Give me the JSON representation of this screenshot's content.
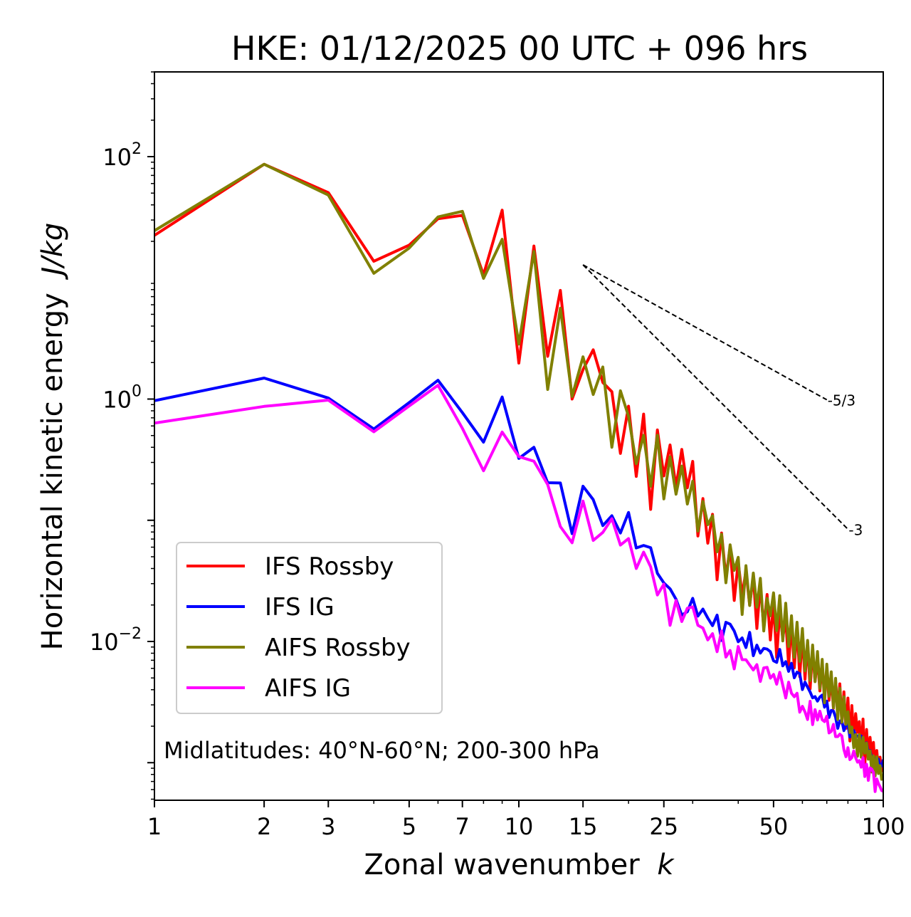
{
  "chart_data": {
    "type": "line",
    "title": "HKE: 01/12/2025 00 UTC + 096 hrs",
    "xlabel": "Zonal wavenumber",
    "xlabel_var": "k",
    "ylabel": "Horizontal kinetic energy",
    "ylabel_units": "J/kg",
    "x_scale": "log",
    "y_scale": "log",
    "xlim": [
      1,
      100
    ],
    "ylim": [
      0.00049,
      500
    ],
    "x_ticks": [
      1,
      2,
      3,
      5,
      7,
      10,
      15,
      25,
      50,
      100
    ],
    "x_tick_labels": [
      "1",
      "2",
      "3",
      "5",
      "7",
      "10",
      "15",
      "25",
      "50",
      "100"
    ],
    "y_ticks": [
      {
        "value": 100,
        "base": "10",
        "exp": "2"
      },
      {
        "value": 1,
        "base": "10",
        "exp": "0"
      },
      {
        "value": 0.01,
        "base": "10",
        "exp": "−2"
      }
    ],
    "annotation": "Midlatitudes: 40°N-60°N; 200-300 hPa",
    "legend_position": "lower-left",
    "reference_slopes": [
      {
        "label": "-5/3",
        "slope": -1.6667,
        "x": [
          15,
          70
        ],
        "y": [
          12.8,
          0.986
        ]
      },
      {
        "label": "-3",
        "slope": -3,
        "x": [
          15,
          80
        ],
        "y": [
          12.8,
          0.0844
        ]
      }
    ],
    "series": [
      {
        "name": "IFS Rossby",
        "color": "#ff0000",
        "x": [
          1,
          2,
          3,
          4,
          5,
          6,
          7,
          8,
          9,
          10,
          11,
          12,
          13,
          14,
          15,
          16,
          17,
          18,
          19,
          20,
          21,
          22,
          23,
          24,
          25,
          26,
          27,
          28,
          29,
          30,
          31,
          32,
          33,
          34,
          35,
          36,
          37,
          38,
          39,
          40,
          41,
          42,
          43,
          44,
          45,
          46,
          47,
          48,
          49,
          50,
          51,
          52,
          53,
          54,
          55,
          56,
          57,
          58,
          59,
          60,
          61,
          62,
          63,
          64,
          65,
          66,
          67,
          68,
          69,
          70,
          71,
          72,
          73,
          74,
          75,
          76,
          77,
          78,
          79,
          80,
          81,
          82,
          83,
          84,
          85,
          86,
          87,
          88,
          89,
          90,
          91,
          92,
          93,
          94,
          95,
          96,
          97,
          98,
          99,
          100
        ],
        "y": [
          22.4,
          86.5,
          50.5,
          13.7,
          18.6,
          30.7,
          32.8,
          10.6,
          36.2,
          1.98,
          18.3,
          2.25,
          7.88,
          1.0,
          1.75,
          2.55,
          1.37,
          1.15,
          0.356,
          0.874,
          0.23,
          0.751,
          0.123,
          0.556,
          0.232,
          0.418,
          0.188,
          0.384,
          0.185,
          0.306,
          0.0742,
          0.151,
          0.0647,
          0.112,
          0.0323,
          0.0785,
          0.0339,
          0.0597,
          0.0218,
          0.0451,
          0.0239,
          0.0382,
          0.0199,
          0.0346,
          0.0128,
          0.0294,
          0.013,
          0.0244,
          0.0103,
          0.0205,
          0.00738,
          0.0178,
          0.0107,
          0.0154,
          0.00637,
          0.0144,
          0.00606,
          0.0131,
          0.00513,
          0.0115,
          0.00488,
          0.00992,
          0.00407,
          0.0086,
          0.00469,
          0.00735,
          0.00391,
          0.00629,
          0.00384,
          0.00587,
          0.00327,
          0.00503,
          0.00281,
          0.0047,
          0.00271,
          0.00447,
          0.00212,
          0.00384,
          0.00192,
          0.00341,
          0.00151,
          0.00296,
          0.00158,
          0.00254,
          0.00178,
          0.00218,
          0.00127,
          0.00229,
          0.000942,
          0.00188,
          0.00107,
          0.00162,
          0.00114,
          0.00147,
          0.000854,
          0.00126,
          0.000877,
          0.00111,
          0.000853,
          0.00104
        ]
      },
      {
        "name": "IFS IG",
        "color": "#0000ff",
        "x": [
          1,
          2,
          3,
          4,
          5,
          6,
          7,
          8,
          9,
          10,
          11,
          12,
          13,
          14,
          15,
          16,
          17,
          18,
          19,
          20,
          21,
          22,
          23,
          24,
          25,
          26,
          27,
          28,
          29,
          30,
          31,
          32,
          33,
          34,
          35,
          36,
          37,
          38,
          39,
          40,
          41,
          42,
          43,
          44,
          45,
          46,
          47,
          48,
          49,
          50,
          51,
          52,
          53,
          54,
          55,
          56,
          57,
          58,
          59,
          60,
          61,
          62,
          63,
          64,
          65,
          66,
          67,
          68,
          69,
          70,
          71,
          72,
          73,
          74,
          75,
          76,
          77,
          78,
          79,
          80,
          81,
          82,
          83,
          84,
          85,
          86,
          87,
          88,
          89,
          90,
          91,
          92,
          93,
          94,
          95,
          96,
          97,
          98,
          99,
          100
        ],
        "y": [
          0.97,
          1.49,
          1.02,
          0.566,
          0.935,
          1.43,
          0.773,
          0.441,
          1.04,
          0.324,
          0.4,
          0.204,
          0.203,
          0.0776,
          0.191,
          0.148,
          0.0903,
          0.109,
          0.0785,
          0.116,
          0.0591,
          0.062,
          0.0594,
          0.0365,
          0.0304,
          0.0272,
          0.0223,
          0.0165,
          0.0176,
          0.0227,
          0.0162,
          0.0185,
          0.0156,
          0.0135,
          0.0165,
          0.0102,
          0.0144,
          0.0139,
          0.0122,
          0.00995,
          0.0107,
          0.00891,
          0.0119,
          0.00763,
          0.00933,
          0.00802,
          0.00877,
          0.00865,
          0.00824,
          0.00693,
          0.00672,
          0.0086,
          0.00629,
          0.00682,
          0.00567,
          0.00661,
          0.00502,
          0.00558,
          0.00543,
          0.00401,
          0.00462,
          0.0042,
          0.00383,
          0.00343,
          0.00351,
          0.00322,
          0.00348,
          0.00361,
          0.00287,
          0.00322,
          0.00236,
          0.0027,
          0.00267,
          0.00237,
          0.00192,
          0.00221,
          0.00221,
          0.00184,
          0.00205,
          0.00205,
          0.00163,
          0.00182,
          0.00184,
          0.00169,
          0.00166,
          0.00161,
          0.00166,
          0.00145,
          0.00128,
          0.00146,
          0.00119,
          0.00126,
          0.00107,
          0.00106,
          0.00108,
          0.000985,
          0.00107,
          0.000919,
          0.00094,
          0.00106
        ]
      },
      {
        "name": "AIFS Rossby",
        "color": "#808000",
        "x": [
          1,
          2,
          3,
          4,
          5,
          6,
          7,
          8,
          9,
          10,
          11,
          12,
          13,
          14,
          15,
          16,
          17,
          18,
          19,
          20,
          21,
          22,
          23,
          24,
          25,
          26,
          27,
          28,
          29,
          30,
          31,
          32,
          33,
          34,
          35,
          36,
          37,
          38,
          39,
          40,
          41,
          42,
          43,
          44,
          45,
          46,
          47,
          48,
          49,
          50,
          51,
          52,
          53,
          54,
          55,
          56,
          57,
          58,
          59,
          60,
          61,
          62,
          63,
          64,
          65,
          66,
          67,
          68,
          69,
          70,
          71,
          72,
          73,
          74,
          75,
          76,
          77,
          78,
          79,
          80,
          81,
          82,
          83,
          84,
          85,
          86,
          87,
          88,
          89,
          90,
          91,
          92,
          93,
          94,
          95,
          96,
          97,
          98,
          99,
          100
        ],
        "y": [
          24.5,
          86.5,
          48.2,
          10.9,
          17.6,
          31.8,
          35.4,
          9.89,
          20.8,
          2.84,
          16.5,
          1.2,
          5.62,
          1.05,
          2.23,
          1.09,
          1.84,
          0.4,
          1.17,
          0.72,
          0.293,
          0.502,
          0.191,
          0.503,
          0.15,
          0.334,
          0.164,
          0.28,
          0.136,
          0.21,
          0.0815,
          0.143,
          0.092,
          0.109,
          0.0549,
          0.0766,
          0.0305,
          0.0627,
          0.0386,
          0.0495,
          0.0167,
          0.0422,
          0.0198,
          0.0367,
          0.0192,
          0.0332,
          0.0122,
          0.0227,
          0.0163,
          0.0252,
          0.0123,
          0.0239,
          0.0101,
          0.0207,
          0.00909,
          0.0163,
          0.00739,
          0.0144,
          0.00685,
          0.0128,
          0.00572,
          0.0102,
          0.00477,
          0.00935,
          0.00466,
          0.00826,
          0.0041,
          0.00712,
          0.00312,
          0.0065,
          0.00353,
          0.00562,
          0.00284,
          0.00497,
          0.00227,
          0.00412,
          0.00216,
          0.0035,
          0.00207,
          0.00263,
          0.00177,
          0.00197,
          0.00133,
          0.00171,
          0.00113,
          0.00171,
          0.00111,
          0.00162,
          0.0012,
          0.00145,
          0.00107,
          0.00125,
          0.000838,
          0.00114,
          0.000777,
          0.00112,
          0.000814,
          0.000947,
          0.000729,
          0.000801
        ]
      },
      {
        "name": "AIFS IG",
        "color": "#ff00ff",
        "x": [
          1,
          2,
          3,
          4,
          5,
          6,
          7,
          8,
          9,
          10,
          11,
          12,
          13,
          14,
          15,
          16,
          17,
          18,
          19,
          20,
          21,
          22,
          23,
          24,
          25,
          26,
          27,
          28,
          29,
          30,
          31,
          32,
          33,
          34,
          35,
          36,
          37,
          38,
          39,
          40,
          41,
          42,
          43,
          44,
          45,
          46,
          47,
          48,
          49,
          50,
          51,
          52,
          53,
          54,
          55,
          56,
          57,
          58,
          59,
          60,
          61,
          62,
          63,
          64,
          65,
          66,
          67,
          68,
          69,
          70,
          71,
          72,
          73,
          74,
          75,
          76,
          77,
          78,
          79,
          80,
          81,
          82,
          83,
          84,
          85,
          86,
          87,
          88,
          89,
          90,
          91,
          92,
          93,
          94,
          95,
          96,
          97,
          98,
          99,
          100
        ],
        "y": [
          0.633,
          0.87,
          0.98,
          0.537,
          0.876,
          1.3,
          0.573,
          0.256,
          0.534,
          0.335,
          0.307,
          0.197,
          0.0887,
          0.0652,
          0.144,
          0.0682,
          0.0794,
          0.103,
          0.0624,
          0.0706,
          0.04,
          0.0546,
          0.0413,
          0.0242,
          0.0297,
          0.0136,
          0.0218,
          0.0146,
          0.0188,
          0.0193,
          0.0136,
          0.0129,
          0.0103,
          0.0116,
          0.00824,
          0.0122,
          0.00744,
          0.00843,
          0.00594,
          0.00909,
          0.00708,
          0.00707,
          0.00639,
          0.00582,
          0.00644,
          0.00468,
          0.00606,
          0.00612,
          0.00498,
          0.00535,
          0.00444,
          0.00557,
          0.00436,
          0.00342,
          0.00462,
          0.00374,
          0.0035,
          0.00374,
          0.00261,
          0.00292,
          0.00262,
          0.00227,
          0.00321,
          0.00206,
          0.00274,
          0.00225,
          0.00266,
          0.00226,
          0.00218,
          0.00242,
          0.00176,
          0.00181,
          0.00207,
          0.00164,
          0.00164,
          0.00172,
          0.00166,
          0.00128,
          0.00112,
          0.00133,
          0.00106,
          0.0011,
          0.00125,
          0.0011,
          0.00101,
          0.00104,
          0.000918,
          0.0011,
          0.000769,
          0.000971,
          0.000714,
          0.000907,
          0.000886,
          0.000831,
          0.000578,
          0.000734,
          0.000672,
          0.000633,
          0.000589,
          0.000581
        ]
      }
    ]
  }
}
